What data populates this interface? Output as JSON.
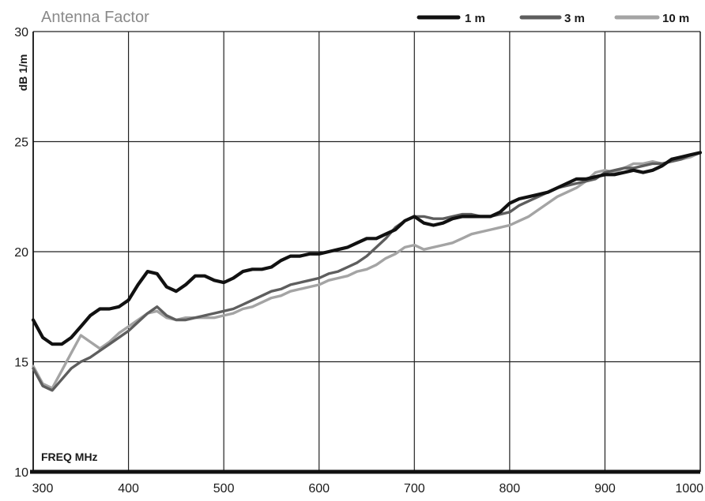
{
  "chart_data": {
    "type": "line",
    "title": "Antenna Factor",
    "xlabel": "FREQ MHz",
    "ylabel": "dB 1/m",
    "xlim": [
      300,
      1000
    ],
    "ylim": [
      10,
      30
    ],
    "x_ticks": [
      "300",
      "400",
      "500",
      "600",
      "700",
      "800",
      "900",
      "1000"
    ],
    "y_ticks": [
      "10",
      "15",
      "20",
      "25",
      "30"
    ],
    "grid": true,
    "legend_position": "top-right",
    "colors": {
      "1 m": "#111111",
      "3 m": "#5e5e5e",
      "10 m": "#a4a4a4",
      "grid": "#222222",
      "axis": "#111111"
    },
    "series": [
      {
        "name": "1 m",
        "x": [
          300,
          310,
          320,
          330,
          340,
          350,
          360,
          370,
          380,
          390,
          400,
          410,
          420,
          430,
          440,
          450,
          460,
          470,
          480,
          490,
          500,
          510,
          520,
          530,
          540,
          550,
          560,
          570,
          580,
          590,
          600,
          610,
          620,
          630,
          640,
          650,
          660,
          670,
          680,
          690,
          700,
          710,
          720,
          730,
          740,
          750,
          760,
          770,
          780,
          790,
          800,
          810,
          820,
          830,
          840,
          850,
          860,
          870,
          880,
          890,
          900,
          910,
          920,
          930,
          940,
          950,
          960,
          970,
          980,
          990,
          1000
        ],
        "values": [
          16.9,
          16.1,
          15.8,
          15.8,
          16.1,
          16.6,
          17.1,
          17.4,
          17.4,
          17.5,
          17.8,
          18.5,
          19.1,
          19.0,
          18.4,
          18.2,
          18.5,
          18.9,
          18.9,
          18.7,
          18.6,
          18.8,
          19.1,
          19.2,
          19.2,
          19.3,
          19.6,
          19.8,
          19.8,
          19.9,
          19.9,
          20.0,
          20.1,
          20.2,
          20.4,
          20.6,
          20.6,
          20.8,
          21.0,
          21.4,
          21.6,
          21.3,
          21.2,
          21.3,
          21.5,
          21.6,
          21.6,
          21.6,
          21.6,
          21.8,
          22.2,
          22.4,
          22.5,
          22.6,
          22.7,
          22.9,
          23.1,
          23.3,
          23.3,
          23.4,
          23.5,
          23.5,
          23.6,
          23.7,
          23.6,
          23.7,
          23.9,
          24.2,
          24.3,
          24.4,
          24.5
        ]
      },
      {
        "name": "3 m",
        "x": [
          300,
          310,
          320,
          330,
          340,
          350,
          360,
          370,
          380,
          390,
          400,
          410,
          420,
          430,
          440,
          450,
          460,
          470,
          480,
          490,
          500,
          510,
          520,
          530,
          540,
          550,
          560,
          570,
          580,
          590,
          600,
          610,
          620,
          630,
          640,
          650,
          660,
          670,
          680,
          690,
          700,
          710,
          720,
          730,
          740,
          750,
          760,
          770,
          780,
          790,
          800,
          810,
          820,
          830,
          840,
          850,
          860,
          870,
          880,
          890,
          900,
          910,
          920,
          930,
          940,
          950,
          960,
          970,
          980,
          990,
          1000
        ],
        "values": [
          14.7,
          13.9,
          13.7,
          14.2,
          14.7,
          15.0,
          15.2,
          15.5,
          15.8,
          16.1,
          16.4,
          16.8,
          17.2,
          17.5,
          17.1,
          16.9,
          16.9,
          17.0,
          17.1,
          17.2,
          17.3,
          17.4,
          17.6,
          17.8,
          18.0,
          18.2,
          18.3,
          18.5,
          18.6,
          18.7,
          18.8,
          19.0,
          19.1,
          19.3,
          19.5,
          19.8,
          20.2,
          20.6,
          21.1,
          21.4,
          21.6,
          21.6,
          21.5,
          21.5,
          21.6,
          21.7,
          21.7,
          21.6,
          21.6,
          21.7,
          21.8,
          22.1,
          22.3,
          22.5,
          22.7,
          22.9,
          23.0,
          23.1,
          23.2,
          23.3,
          23.6,
          23.7,
          23.8,
          23.8,
          23.9,
          24.0,
          24.0,
          24.1,
          24.2,
          24.4,
          24.5
        ]
      },
      {
        "name": "10 m",
        "x": [
          300,
          310,
          320,
          330,
          340,
          350,
          360,
          370,
          380,
          390,
          400,
          410,
          420,
          430,
          440,
          450,
          460,
          470,
          480,
          490,
          500,
          510,
          520,
          530,
          540,
          550,
          560,
          570,
          580,
          590,
          600,
          610,
          620,
          630,
          640,
          650,
          660,
          670,
          680,
          690,
          700,
          710,
          720,
          730,
          740,
          750,
          760,
          770,
          780,
          790,
          800,
          810,
          820,
          830,
          840,
          850,
          860,
          870,
          880,
          890,
          900,
          910,
          920,
          930,
          940,
          950,
          960,
          970,
          980,
          990,
          1000
        ],
        "values": [
          14.8,
          14.0,
          13.8,
          14.6,
          15.4,
          16.2,
          15.9,
          15.6,
          15.9,
          16.3,
          16.6,
          16.9,
          17.2,
          17.3,
          17.0,
          16.9,
          17.0,
          17.0,
          17.0,
          17.0,
          17.1,
          17.2,
          17.4,
          17.5,
          17.7,
          17.9,
          18.0,
          18.2,
          18.3,
          18.4,
          18.5,
          18.7,
          18.8,
          18.9,
          19.1,
          19.2,
          19.4,
          19.7,
          19.9,
          20.2,
          20.3,
          20.1,
          20.2,
          20.3,
          20.4,
          20.6,
          20.8,
          20.9,
          21.0,
          21.1,
          21.2,
          21.4,
          21.6,
          21.9,
          22.2,
          22.5,
          22.7,
          22.9,
          23.2,
          23.6,
          23.7,
          23.6,
          23.8,
          24.0,
          24.0,
          24.1,
          24.0,
          24.1,
          24.2,
          24.3,
          24.5
        ]
      }
    ]
  }
}
